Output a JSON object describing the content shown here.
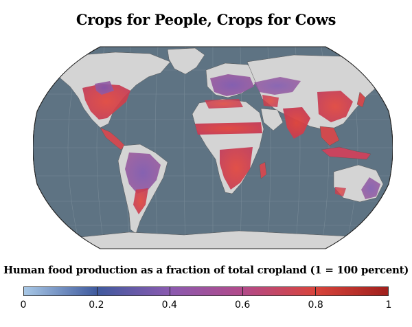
{
  "title": "Crops for People, Crops for Cows",
  "legend": {
    "title": "Human food production as a fraction of total cropland (1 = 100 percent)",
    "ticks": [
      "0",
      "0.2",
      "0.4",
      "0.6",
      "0.8",
      "1"
    ],
    "scale_min": 0,
    "scale_max": 1,
    "colors": [
      "#a8c8e6",
      "#3f5a9e",
      "#8a5ab0",
      "#b24a8a",
      "#d8443c",
      "#a0201c"
    ]
  },
  "map": {
    "projection": "robinson",
    "ocean_color": "#5e7383",
    "no_data_color": "#d4d4d4",
    "graticule": true
  }
}
